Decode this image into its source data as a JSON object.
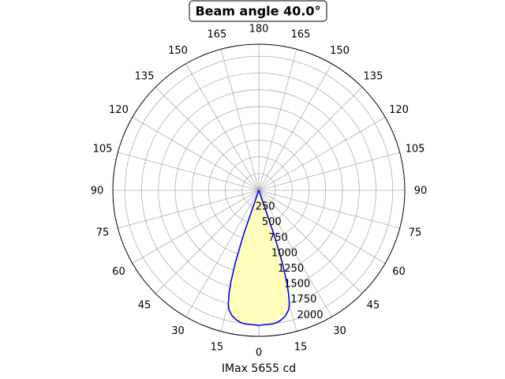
{
  "chart_data": {
    "type": "polar",
    "title": "Beam angle 40.0°",
    "xlabel": "IMax 5655 cd",
    "angle_tick_labels": [
      "0",
      "15",
      "30",
      "45",
      "60",
      "75",
      "90",
      "105",
      "120",
      "135",
      "150",
      "165",
      "180",
      "165",
      "150",
      "135",
      "120",
      "105",
      "90",
      "75",
      "60",
      "45",
      "30",
      "15"
    ],
    "radial_tick_labels": [
      "250",
      "500",
      "750",
      "1000",
      "1250",
      "1500",
      "1750",
      "2000"
    ],
    "radial_ticks": [
      250,
      500,
      750,
      1000,
      1250,
      1500,
      1750,
      2000
    ],
    "rlim": [
      0,
      2180
    ],
    "grid": true,
    "series": [
      {
        "line_color": "#0000ff",
        "fill_color": "#ffffbb",
        "angles_deg": [
          0,
          6,
          8,
          10,
          12,
          14,
          15,
          16,
          17,
          18,
          19,
          20,
          20,
          19,
          18,
          17,
          16,
          15,
          14,
          12,
          10,
          8,
          6,
          0
        ],
        "side": [
          -1,
          -1,
          -1,
          -1,
          -1,
          -1,
          -1,
          -1,
          -1,
          -1,
          -1,
          -1,
          1,
          1,
          1,
          1,
          1,
          1,
          1,
          1,
          1,
          1,
          1,
          1
        ],
        "radii": [
          2015,
          2005,
          1990,
          1960,
          1915,
          1840,
          1760,
          1620,
          1420,
          1120,
          700,
          0,
          0,
          700,
          1120,
          1420,
          1620,
          1760,
          1840,
          1915,
          1960,
          1990,
          2005,
          2015
        ]
      }
    ]
  }
}
